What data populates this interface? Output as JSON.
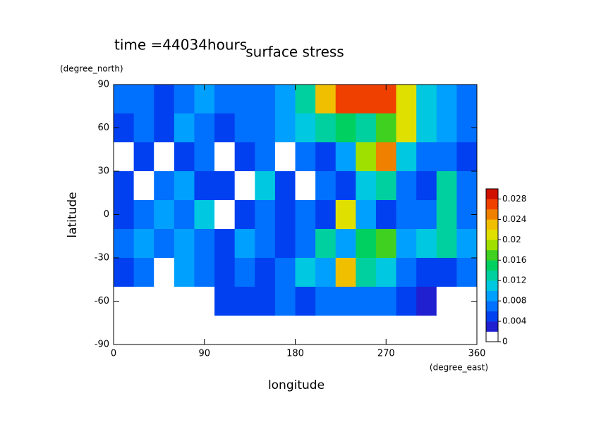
{
  "chart_data": {
    "type": "contour",
    "title": "surface stress",
    "subtitle": "time =44034hours",
    "x_label": "longitude",
    "y_label": "latitude",
    "x_unit": "(degree_east)",
    "y_unit": "(degree_north)",
    "xlim": [
      0,
      360
    ],
    "ylim": [
      -90,
      90
    ],
    "xticks": [
      0,
      90,
      180,
      270,
      360
    ],
    "yticks": [
      -90,
      -60,
      -30,
      0,
      30,
      60,
      90
    ],
    "x": [
      10,
      30,
      50,
      70,
      90,
      110,
      130,
      150,
      170,
      190,
      210,
      230,
      250,
      270,
      290,
      310,
      330,
      350
    ],
    "y": [
      80,
      60,
      40,
      20,
      0,
      -20,
      -40,
      -60,
      -80
    ],
    "z": [
      [
        0.006,
        0.007,
        0.005,
        0.006,
        0.008,
        0.007,
        0.006,
        0.006,
        0.008,
        0.012,
        0.022,
        0.026,
        0.026,
        0.026,
        0.02,
        0.01,
        0.008,
        0.007
      ],
      [
        0.004,
        0.006,
        0.005,
        0.008,
        0.006,
        0.005,
        0.006,
        0.007,
        0.008,
        0.01,
        0.012,
        0.014,
        0.012,
        0.016,
        0.02,
        0.01,
        0.008,
        0.006
      ],
      [
        0,
        0.004,
        0,
        0.004,
        0.006,
        0,
        0.004,
        0.006,
        0,
        0.006,
        0.004,
        0.008,
        0.018,
        0.024,
        0.01,
        0.006,
        0.006,
        0.004
      ],
      [
        0.004,
        0,
        0.006,
        0.008,
        0.004,
        0.004,
        0,
        0.01,
        0.004,
        0,
        0.006,
        0.004,
        0.01,
        0.012,
        0.006,
        0.004,
        0.012,
        0.006
      ],
      [
        0.004,
        0.006,
        0.008,
        0.006,
        0.01,
        0,
        0.004,
        0.006,
        0.004,
        0.006,
        0.004,
        0.02,
        0.008,
        0.004,
        0.006,
        0.006,
        0.012,
        0.006
      ],
      [
        0.006,
        0.008,
        0.006,
        0.008,
        0.006,
        0.004,
        0.008,
        0.006,
        0.004,
        0.006,
        0.012,
        0.008,
        0.014,
        0.016,
        0.008,
        0.01,
        0.012,
        0.008
      ],
      [
        0.004,
        0.006,
        0,
        0.008,
        0.006,
        0.004,
        0.006,
        0.004,
        0.006,
        0.01,
        0.008,
        0.022,
        0.012,
        0.01,
        0.006,
        0.004,
        0.004,
        0.006
      ],
      [
        0,
        0,
        0,
        0,
        0,
        0.004,
        0.004,
        0.004,
        0.006,
        0.004,
        0.006,
        0.006,
        0.006,
        0.006,
        0.004,
        0.002,
        0,
        0
      ],
      [
        0,
        0,
        0,
        0,
        0,
        0,
        0,
        0,
        0,
        0,
        0,
        0,
        0,
        0,
        0,
        0,
        0,
        0
      ]
    ],
    "clim": [
      0,
      0.03
    ],
    "cticks": [
      0,
      0.004,
      0.008,
      0.012,
      0.016,
      0.02,
      0.024,
      0.028
    ],
    "colors": [
      "#ffffff",
      "#2020d0",
      "#0040f0",
      "#0070ff",
      "#00a0ff",
      "#00c8e0",
      "#00d0a0",
      "#00d060",
      "#40d020",
      "#a0e000",
      "#e0e000",
      "#f0c000",
      "#f08000",
      "#f04000",
      "#d01000"
    ]
  }
}
